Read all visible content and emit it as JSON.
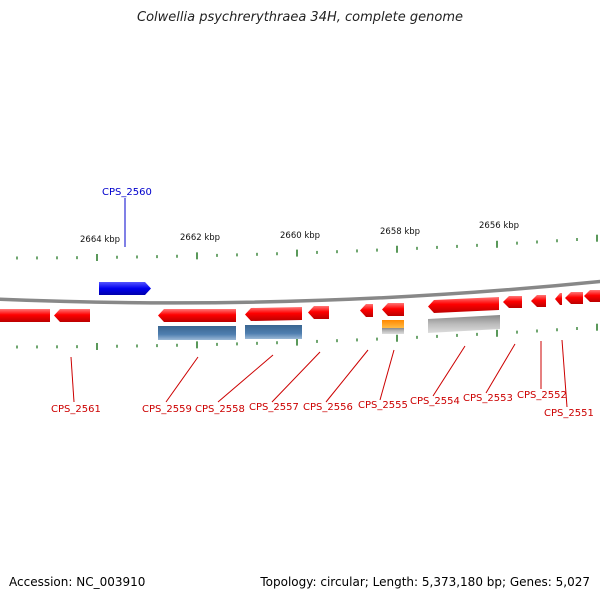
{
  "title": "Colwellia psychrerythraea 34H, complete genome",
  "footer": {
    "accession": "Accession: NC_003910",
    "info": "Topology: circular; Length: 5,373,180 bp; Genes: 5,027"
  },
  "scale_labels": [
    "2664 kbp",
    "2662 kbp",
    "2660 kbp",
    "2658 kbp",
    "2656 kbp"
  ],
  "genes": [
    {
      "name": "CPS_2560",
      "color": "#0000ee",
      "strand": "+"
    },
    {
      "name": "CPS_2561",
      "color": "#cc0000",
      "strand": "-"
    },
    {
      "name": "CPS_2559",
      "color": "#cc0000",
      "strand": "-"
    },
    {
      "name": "CPS_2558",
      "color": "#cc0000",
      "strand": "-"
    },
    {
      "name": "CPS_2557",
      "color": "#cc0000",
      "strand": "-"
    },
    {
      "name": "CPS_2556",
      "color": "#cc0000",
      "strand": "-"
    },
    {
      "name": "CPS_2555",
      "color": "#cc0000",
      "strand": "-"
    },
    {
      "name": "CPS_2554",
      "color": "#cc0000",
      "strand": "-"
    },
    {
      "name": "CPS_2553",
      "color": "#cc0000",
      "strand": "-"
    },
    {
      "name": "CPS_2552",
      "color": "#cc0000",
      "strand": "-"
    },
    {
      "name": "CPS_2551",
      "color": "#cc0000",
      "strand": "-"
    }
  ],
  "colors": {
    "gene_forward": "#0000ee",
    "gene_reverse": "#ff0000",
    "label_reverse": "#cc0000",
    "tick": "#227722",
    "backbone": "#888888",
    "feature_blue": "#4a7aaa",
    "feature_orange": "#ff9900",
    "feature_gray": "#bbbbbb"
  }
}
